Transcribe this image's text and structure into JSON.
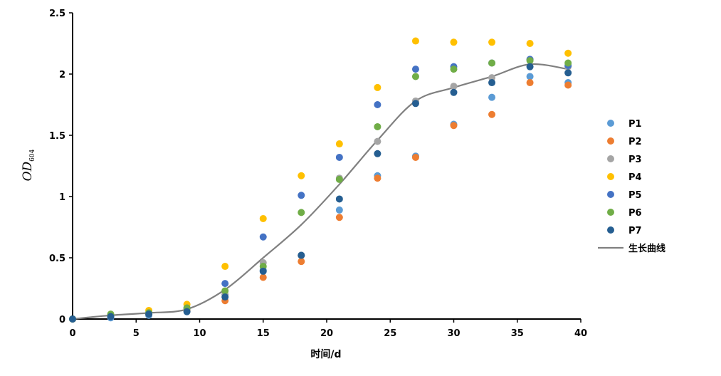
{
  "chart_data": {
    "type": "scatter",
    "title": "",
    "xlabel": "时间/d",
    "ylabel": "OD",
    "ylabel_subscript": "604",
    "xlim": [
      0,
      40
    ],
    "ylim": [
      0,
      2.5
    ],
    "xticks": [
      0,
      5,
      10,
      15,
      20,
      25,
      30,
      35,
      40
    ],
    "xtick_labels": [
      "0",
      "5",
      "10",
      "15",
      "20",
      "25",
      "30",
      "35",
      "40"
    ],
    "yticks": [
      0,
      0.5,
      1,
      1.5,
      2,
      2.5
    ],
    "ytick_labels": [
      "0",
      "0.5",
      "1",
      "1.5",
      "2",
      "2.5"
    ],
    "grid": false,
    "legend_position": "right",
    "x": [
      0,
      3,
      6,
      9,
      12,
      15,
      18,
      21,
      24,
      27,
      30,
      33,
      36,
      39
    ],
    "series": [
      {
        "name": "P1",
        "color": "#5B9BD5",
        "values": [
          0,
          0.01,
          0.03,
          0.07,
          0.2,
          0.4,
          0.52,
          0.89,
          1.17,
          1.33,
          1.59,
          1.81,
          1.98,
          1.93
        ]
      },
      {
        "name": "P2",
        "color": "#ED7D31",
        "values": [
          0,
          0.02,
          0.04,
          0.07,
          0.15,
          0.34,
          0.47,
          0.83,
          1.15,
          1.32,
          1.58,
          1.67,
          1.93,
          1.91
        ]
      },
      {
        "name": "P3",
        "color": "#A5A5A5",
        "values": [
          0,
          0.03,
          0.05,
          0.08,
          0.2,
          0.46,
          0.52,
          1.15,
          1.45,
          1.78,
          1.9,
          1.97,
          2.12,
          2.06
        ]
      },
      {
        "name": "P4",
        "color": "#FFC000",
        "values": [
          0,
          0.03,
          0.07,
          0.12,
          0.43,
          0.82,
          1.17,
          1.43,
          1.89,
          2.27,
          2.26,
          2.26,
          2.25,
          2.17
        ]
      },
      {
        "name": "P5",
        "color": "#4472C4",
        "values": [
          0,
          0.02,
          0.05,
          0.09,
          0.29,
          0.67,
          1.01,
          1.32,
          1.75,
          2.04,
          2.06,
          2.09,
          2.12,
          2.07
        ]
      },
      {
        "name": "P6",
        "color": "#70AD47",
        "values": [
          0,
          0.04,
          0.05,
          0.09,
          0.23,
          0.43,
          0.87,
          1.14,
          1.57,
          1.98,
          2.04,
          2.09,
          2.11,
          2.09
        ]
      },
      {
        "name": "P7",
        "color": "#255E91",
        "values": [
          0,
          0.02,
          0.04,
          0.06,
          0.18,
          0.39,
          0.52,
          0.98,
          1.35,
          1.76,
          1.85,
          1.93,
          2.06,
          2.01
        ]
      }
    ],
    "curve": {
      "name": "生长曲线",
      "type": "line",
      "color": "#808080",
      "x": [
        0,
        3,
        6,
        9,
        12,
        15,
        18,
        21,
        24,
        27,
        30,
        33,
        36,
        39
      ],
      "values": [
        0,
        0.03,
        0.05,
        0.08,
        0.24,
        0.5,
        0.77,
        1.1,
        1.46,
        1.78,
        1.89,
        1.98,
        2.08,
        2.04
      ]
    }
  }
}
